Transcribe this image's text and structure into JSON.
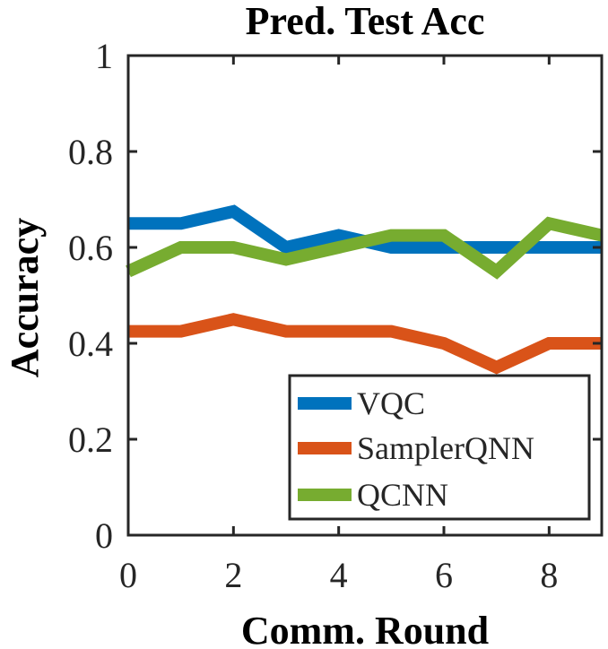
{
  "chart_data": {
    "type": "line",
    "title": "Pred. Test Acc",
    "xlabel": "Comm. Round",
    "ylabel": "Accuracy",
    "xlim": [
      0,
      9
    ],
    "ylim": [
      0,
      1
    ],
    "x": [
      0,
      1,
      2,
      3,
      4,
      5,
      6,
      7,
      8,
      9
    ],
    "xticks": [
      0,
      2,
      4,
      6,
      8
    ],
    "xtick_labels": [
      "0",
      "2",
      "4",
      "6",
      "8"
    ],
    "yticks": [
      0,
      0.2,
      0.4,
      0.6,
      0.8,
      1
    ],
    "ytick_labels": [
      "0",
      "0.2",
      "0.4",
      "0.6",
      "0.8",
      "1"
    ],
    "grid": false,
    "legend_position": "bottom-right",
    "series": [
      {
        "name": "VQC",
        "color": "#0072BD",
        "values": [
          0.65,
          0.65,
          0.675,
          0.6,
          0.625,
          0.6,
          0.6,
          0.6,
          0.6,
          0.6
        ]
      },
      {
        "name": "SamplerQNN",
        "color": "#D95319",
        "values": [
          0.425,
          0.425,
          0.45,
          0.425,
          0.425,
          0.425,
          0.4,
          0.35,
          0.4,
          0.4
        ]
      },
      {
        "name": "QCNN",
        "color": "#77AC30",
        "values": [
          0.55,
          0.6,
          0.6,
          0.575,
          0.6,
          0.625,
          0.625,
          0.55,
          0.65,
          0.625
        ]
      }
    ]
  }
}
